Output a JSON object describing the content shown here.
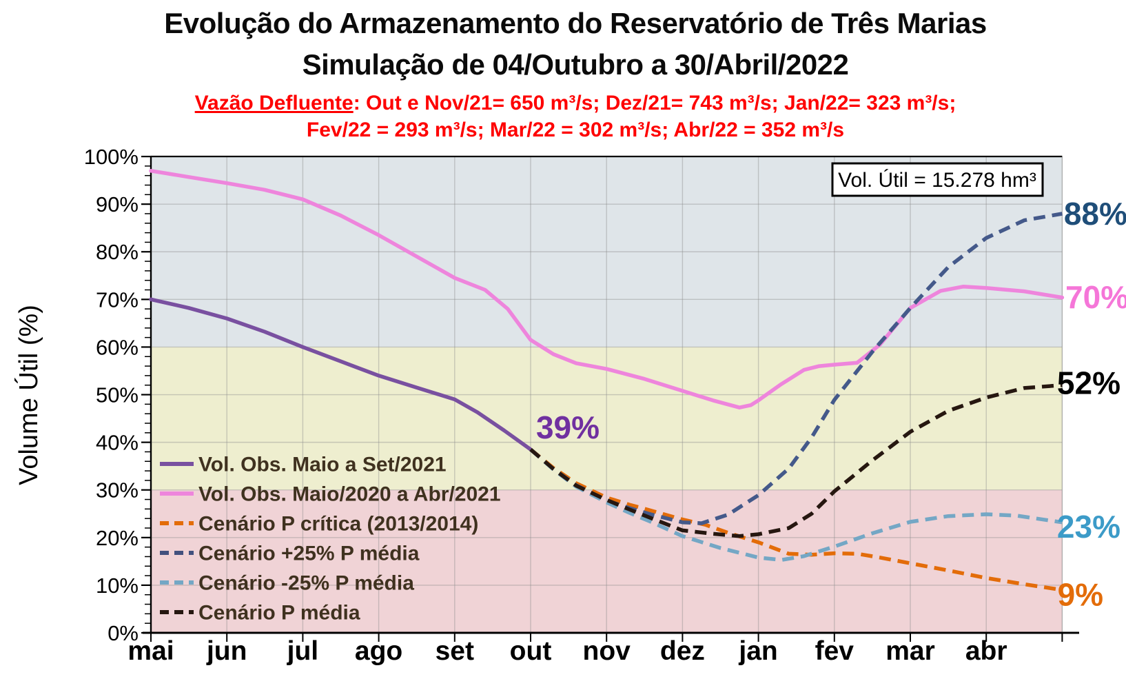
{
  "title": {
    "line1": "Evolução do Armazenamento do Reservatório de Três Marias",
    "line2": "Simulação de 04/Outubro a 30/Abril/2022"
  },
  "subtitle": {
    "lead": "Vazão Defluente",
    "line1_rest": ": Out e Nov/21= 650 m³/s; Dez/21= 743 m³/s; Jan/22= 323 m³/s;",
    "line2": "Fev/22 = 293 m³/s; Mar/22 = 302 m³/s; Abr/22 = 352 m³/s",
    "color": "#FE0000"
  },
  "info_box": {
    "label": "Vol. Útil  = 15.278 hm³"
  },
  "chart_data": {
    "type": "line",
    "title": "Evolução do Armazenamento do Reservatório de Três Marias — Simulação de 04/Outubro a 30/Abril/2022",
    "ylabel": "Volume  Útil (%)",
    "xlabel": "",
    "x_unit": "month-index (0 = início de mai, 12 = fim de abr)",
    "x_categories": [
      "mai",
      "jun",
      "jul",
      "ago",
      "set",
      "out",
      "nov",
      "dez",
      "jan",
      "fev",
      "mar",
      "abr"
    ],
    "ylim": [
      0,
      100
    ],
    "y_tick_labels": [
      "0%",
      "10%",
      "20%",
      "30%",
      "40%",
      "50%",
      "60%",
      "70%",
      "80%",
      "90%",
      "100%"
    ],
    "y_major_step": 10,
    "y_minor_step": 2,
    "grid": true,
    "bands": [
      {
        "name": "band-high",
        "from": 60,
        "to": 100,
        "color": "#DFE5E9"
      },
      {
        "name": "band-mid",
        "from": 30,
        "to": 60,
        "color": "#EEEECF"
      },
      {
        "name": "band-low",
        "from": 0,
        "to": 30,
        "color": "#F0D3D6"
      }
    ],
    "series": [
      {
        "name": "Vol. Obs. Maio a Set/2021",
        "color": "#7950A0",
        "dashed": false,
        "points": [
          [
            0,
            70
          ],
          [
            0.5,
            68.2
          ],
          [
            1,
            66
          ],
          [
            1.5,
            63.2
          ],
          [
            2,
            60
          ],
          [
            2.5,
            57
          ],
          [
            3,
            54
          ],
          [
            3.5,
            51.5
          ],
          [
            4,
            49
          ],
          [
            4.3,
            46.3
          ],
          [
            4.65,
            42.5
          ],
          [
            5,
            38.5
          ]
        ]
      },
      {
        "name": "Vol. Obs. Maio/2020 a Abr/2021",
        "color": "#EE85DC",
        "dashed": false,
        "points": [
          [
            0,
            97
          ],
          [
            0.5,
            95.7
          ],
          [
            1,
            94.4
          ],
          [
            1.5,
            93
          ],
          [
            2,
            91
          ],
          [
            2.5,
            87.6
          ],
          [
            3,
            83.5
          ],
          [
            3.5,
            79
          ],
          [
            4,
            74.5
          ],
          [
            4.4,
            72
          ],
          [
            4.7,
            68
          ],
          [
            5,
            61.5
          ],
          [
            5.3,
            58.5
          ],
          [
            5.6,
            56.6
          ],
          [
            6,
            55.4
          ],
          [
            6.5,
            53.3
          ],
          [
            7,
            50.8
          ],
          [
            7.4,
            48.8
          ],
          [
            7.75,
            47.3
          ],
          [
            7.9,
            47.8
          ],
          [
            8,
            48.8
          ],
          [
            8.3,
            52.2
          ],
          [
            8.6,
            55.2
          ],
          [
            8.8,
            56
          ],
          [
            9,
            56.3
          ],
          [
            9.3,
            56.7
          ],
          [
            9.6,
            60.5
          ],
          [
            10,
            68.2
          ],
          [
            10.4,
            71.8
          ],
          [
            10.7,
            72.7
          ],
          [
            11,
            72.4
          ],
          [
            11.5,
            71.7
          ],
          [
            12,
            70.4
          ]
        ]
      },
      {
        "name": "Cenário P crítica (2013/2014)",
        "color": "#E36C09",
        "dashed": true,
        "points": [
          [
            5,
            38.5
          ],
          [
            5.3,
            34.6
          ],
          [
            5.6,
            31.4
          ],
          [
            6,
            28.4
          ],
          [
            6.3,
            26.9
          ],
          [
            6.6,
            25.6
          ],
          [
            7,
            23.8
          ],
          [
            7.3,
            22.7
          ],
          [
            7.6,
            21
          ],
          [
            8,
            19
          ],
          [
            8.4,
            16.6
          ],
          [
            8.7,
            16.4
          ],
          [
            9,
            16.7
          ],
          [
            9.3,
            16.6
          ],
          [
            9.6,
            15.8
          ],
          [
            10,
            14.6
          ],
          [
            10.5,
            13.1
          ],
          [
            11,
            11.5
          ],
          [
            11.5,
            10.2
          ],
          [
            12,
            9
          ]
        ]
      },
      {
        "name": "Cenário +25% P média",
        "color": "#44598A",
        "legend_color": "#42517E",
        "dashed": true,
        "points": [
          [
            5,
            38.5
          ],
          [
            5.3,
            34.4
          ],
          [
            5.6,
            31
          ],
          [
            6,
            27.8
          ],
          [
            6.3,
            26.2
          ],
          [
            6.6,
            24.8
          ],
          [
            7,
            23.2
          ],
          [
            7.25,
            23
          ],
          [
            7.6,
            24.8
          ],
          [
            8,
            28.9
          ],
          [
            8.4,
            34.5
          ],
          [
            8.7,
            41
          ],
          [
            9,
            48.9
          ],
          [
            9.5,
            59
          ],
          [
            10,
            68.2
          ],
          [
            10.5,
            76.8
          ],
          [
            11,
            82.9
          ],
          [
            11.5,
            86.6
          ],
          [
            12,
            88
          ]
        ]
      },
      {
        "name": "Cenário -25% P média",
        "color": "#74A7C5",
        "dashed": true,
        "points": [
          [
            5,
            38.5
          ],
          [
            5.3,
            34.3
          ],
          [
            5.6,
            30.7
          ],
          [
            6,
            27.4
          ],
          [
            6.3,
            25.2
          ],
          [
            6.6,
            23.2
          ],
          [
            7,
            20.3
          ],
          [
            7.5,
            17.8
          ],
          [
            8,
            15.8
          ],
          [
            8.3,
            15.3
          ],
          [
            8.6,
            16.1
          ],
          [
            9,
            18.1
          ],
          [
            9.5,
            20.9
          ],
          [
            10,
            23.3
          ],
          [
            10.5,
            24.5
          ],
          [
            11,
            24.9
          ],
          [
            11.4,
            24.6
          ],
          [
            12,
            23.2
          ]
        ]
      },
      {
        "name": "Cenário P média",
        "color": "#261710",
        "dashed": true,
        "points": [
          [
            5,
            38.5
          ],
          [
            5.3,
            34.4
          ],
          [
            5.6,
            30.9
          ],
          [
            6,
            27.9
          ],
          [
            6.3,
            25.9
          ],
          [
            6.6,
            24
          ],
          [
            7,
            21.5
          ],
          [
            7.4,
            20.8
          ],
          [
            7.75,
            20.3
          ],
          [
            8,
            20.7
          ],
          [
            8.4,
            22
          ],
          [
            8.7,
            25
          ],
          [
            9,
            29.7
          ],
          [
            9.5,
            36.2
          ],
          [
            10,
            42.2
          ],
          [
            10.5,
            46.6
          ],
          [
            11,
            49.4
          ],
          [
            11.5,
            51.4
          ],
          [
            12,
            52
          ]
        ]
      }
    ],
    "annotations": [
      {
        "text": "39%",
        "month": 5.49,
        "pct": 43.1,
        "color": "#7030A0"
      },
      {
        "text": "88%",
        "month": 12.44,
        "pct": 88.0,
        "color": "#1F4E79"
      },
      {
        "text": "70%",
        "month": 12.46,
        "pct": 70.5,
        "color": "#F576D8"
      },
      {
        "text": "52%",
        "month": 12.35,
        "pct": 52.5,
        "color": "#000000"
      },
      {
        "text": "23%",
        "month": 12.35,
        "pct": 22.3,
        "color": "#3C9BC8"
      },
      {
        "text": "9%",
        "month": 12.24,
        "pct": 8.0,
        "color": "#E36C09"
      }
    ],
    "legend": {
      "position": "middle-left",
      "text_color": "#3F311F"
    }
  }
}
